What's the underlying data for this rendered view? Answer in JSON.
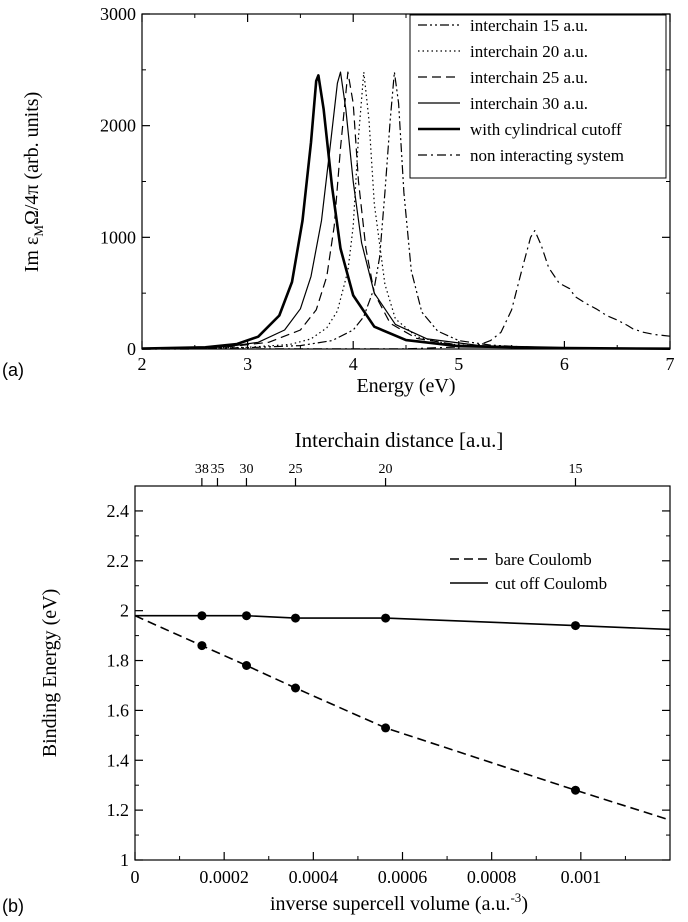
{
  "chart_data": [
    {
      "panel": "(a)",
      "type": "line",
      "xlabel": "Energy (eV)",
      "ylabel": "Im ε_M Ω/4π (arb. units)",
      "ylabel_parts": {
        "pre": "Im ε",
        "sub": "M",
        "post": "Ω/4π (arb. units)"
      },
      "xlim": [
        2,
        7
      ],
      "ylim": [
        0,
        3000
      ],
      "xticks": [
        "2",
        "3",
        "4",
        "5",
        "6",
        "7"
      ],
      "yticks": [
        "0",
        "1000",
        "2000",
        "3000"
      ],
      "legend_position": "top-right",
      "series": [
        {
          "name": "interchain 15 a.u.",
          "style": "dashdotdot",
          "width": 1.2,
          "points": [
            [
              2,
              2
            ],
            [
              3,
              12
            ],
            [
              3.5,
              30
            ],
            [
              3.8,
              75
            ],
            [
              4.0,
              170
            ],
            [
              4.1,
              290
            ],
            [
              4.2,
              550
            ],
            [
              4.25,
              820
            ],
            [
              4.3,
              1400
            ],
            [
              4.35,
              2050
            ],
            [
              4.39,
              2480
            ],
            [
              4.43,
              2200
            ],
            [
              4.48,
              1400
            ],
            [
              4.55,
              700
            ],
            [
              4.65,
              330
            ],
            [
              4.8,
              160
            ],
            [
              5.0,
              75
            ],
            [
              5.3,
              35
            ],
            [
              5.6,
              20
            ],
            [
              6,
              10
            ],
            [
              7,
              4
            ]
          ]
        },
        {
          "name": "interchain 20 a.u.",
          "style": "dotted",
          "width": 1.2,
          "points": [
            [
              2,
              2
            ],
            [
              3,
              15
            ],
            [
              3.4,
              40
            ],
            [
              3.6,
              90
            ],
            [
              3.75,
              190
            ],
            [
              3.85,
              340
            ],
            [
              3.95,
              700
            ],
            [
              4.0,
              1100
            ],
            [
              4.05,
              1900
            ],
            [
              4.1,
              2480
            ],
            [
              4.15,
              2050
            ],
            [
              4.2,
              1300
            ],
            [
              4.3,
              580
            ],
            [
              4.4,
              270
            ],
            [
              4.6,
              110
            ],
            [
              4.9,
              45
            ],
            [
              5.3,
              20
            ],
            [
              6,
              8
            ],
            [
              7,
              3
            ]
          ]
        },
        {
          "name": "interchain 25 a.u.",
          "style": "dashed",
          "width": 1.2,
          "points": [
            [
              2,
              3
            ],
            [
              2.8,
              18
            ],
            [
              3.2,
              60
            ],
            [
              3.5,
              170
            ],
            [
              3.65,
              350
            ],
            [
              3.75,
              650
            ],
            [
              3.82,
              1100
            ],
            [
              3.88,
              1800
            ],
            [
              3.95,
              2480
            ],
            [
              4.0,
              2200
            ],
            [
              4.05,
              1500
            ],
            [
              4.12,
              900
            ],
            [
              4.2,
              500
            ],
            [
              4.35,
              230
            ],
            [
              4.6,
              95
            ],
            [
              5.0,
              35
            ],
            [
              5.5,
              15
            ],
            [
              6,
              8
            ],
            [
              7,
              3
            ]
          ]
        },
        {
          "name": "interchain 30 a.u.",
          "style": "solid",
          "width": 1.2,
          "points": [
            [
              2,
              3
            ],
            [
              2.8,
              20
            ],
            [
              3.1,
              60
            ],
            [
              3.35,
              170
            ],
            [
              3.5,
              360
            ],
            [
              3.6,
              650
            ],
            [
              3.7,
              1150
            ],
            [
              3.78,
              1800
            ],
            [
              3.85,
              2380
            ],
            [
              3.88,
              2480
            ],
            [
              3.93,
              2150
            ],
            [
              4.0,
              1500
            ],
            [
              4.08,
              950
            ],
            [
              4.2,
              500
            ],
            [
              4.4,
              220
            ],
            [
              4.7,
              90
            ],
            [
              5.2,
              30
            ],
            [
              6,
              8
            ],
            [
              7,
              3
            ]
          ]
        },
        {
          "name": "with cylindrical cutoff",
          "style": "solid",
          "width": 2.6,
          "points": [
            [
              2,
              4
            ],
            [
              2.6,
              15
            ],
            [
              2.9,
              45
            ],
            [
              3.1,
              110
            ],
            [
              3.3,
              300
            ],
            [
              3.42,
              600
            ],
            [
              3.52,
              1150
            ],
            [
              3.6,
              1850
            ],
            [
              3.65,
              2400
            ],
            [
              3.67,
              2450
            ],
            [
              3.72,
              2150
            ],
            [
              3.8,
              1450
            ],
            [
              3.88,
              900
            ],
            [
              4.0,
              480
            ],
            [
              4.2,
              200
            ],
            [
              4.5,
              80
            ],
            [
              5.0,
              25
            ],
            [
              6,
              8
            ],
            [
              7,
              3
            ]
          ]
        },
        {
          "name": "non interacting system",
          "style": "dashdot",
          "width": 1.2,
          "points": [
            [
              2,
              0
            ],
            [
              4.5,
              2
            ],
            [
              5.0,
              18
            ],
            [
              5.2,
              40
            ],
            [
              5.3,
              75
            ],
            [
              5.4,
              150
            ],
            [
              5.5,
              350
            ],
            [
              5.6,
              720
            ],
            [
              5.68,
              1000
            ],
            [
              5.72,
              1060
            ],
            [
              5.78,
              930
            ],
            [
              5.85,
              730
            ],
            [
              5.95,
              590
            ],
            [
              6.05,
              540
            ],
            [
              6.1,
              470
            ],
            [
              6.2,
              410
            ],
            [
              6.3,
              360
            ],
            [
              6.4,
              300
            ],
            [
              6.5,
              260
            ],
            [
              6.6,
              210
            ],
            [
              6.65,
              180
            ],
            [
              6.75,
              150
            ],
            [
              6.85,
              130
            ],
            [
              6.95,
              120
            ],
            [
              7,
              115
            ]
          ]
        }
      ]
    },
    {
      "panel": "(b)",
      "type": "line",
      "xlabel": "inverse supercell volume  (a.u.",
      "xlabel_sup": "-3",
      "xlabel_end": ")",
      "ylabel": "Binding Energy (eV)",
      "top_xlabel": "Interchain distance [a.u.]",
      "xlim": [
        0,
        0.0012
      ],
      "ylim": [
        1,
        2.5
      ],
      "xticks": [
        "0",
        "0.0002",
        "0.0004",
        "0.0006",
        "0.0008",
        "0.001"
      ],
      "yticks": [
        "1",
        "1.2",
        "1.4",
        "1.6",
        "1.8",
        "2",
        "2.2",
        "2.4"
      ],
      "top_ticks": [
        {
          "label": "38",
          "x": 0.00015
        },
        {
          "label": "35",
          "x": 0.000185
        },
        {
          "label": "30",
          "x": 0.00025
        },
        {
          "label": "25",
          "x": 0.00036
        },
        {
          "label": "20",
          "x": 0.000562
        },
        {
          "label": "15",
          "x": 0.000988
        }
      ],
      "legend_position": "top-right",
      "series": [
        {
          "name": "bare Coulomb",
          "style": "dashed",
          "line": [
            [
              0,
              1.98
            ],
            [
              0.00015,
              1.86
            ],
            [
              0.00025,
              1.78
            ],
            [
              0.00036,
              1.69
            ],
            [
              0.000562,
              1.53
            ],
            [
              0.000988,
              1.28
            ],
            [
              0.0012,
              1.16
            ]
          ],
          "markers": [
            [
              0.00015,
              1.86
            ],
            [
              0.00025,
              1.78
            ],
            [
              0.00036,
              1.69
            ],
            [
              0.000562,
              1.53
            ],
            [
              0.000988,
              1.28
            ]
          ]
        },
        {
          "name": "cut off Coulomb",
          "style": "solid",
          "line": [
            [
              0,
              1.98
            ],
            [
              0.00015,
              1.98
            ],
            [
              0.00025,
              1.98
            ],
            [
              0.00036,
              1.97
            ],
            [
              0.000562,
              1.97
            ],
            [
              0.000988,
              1.94
            ],
            [
              0.0012,
              1.925
            ]
          ],
          "markers": [
            [
              0.00015,
              1.98
            ],
            [
              0.00025,
              1.98
            ],
            [
              0.00036,
              1.97
            ],
            [
              0.000562,
              1.97
            ],
            [
              0.000988,
              1.94
            ]
          ]
        }
      ]
    }
  ]
}
